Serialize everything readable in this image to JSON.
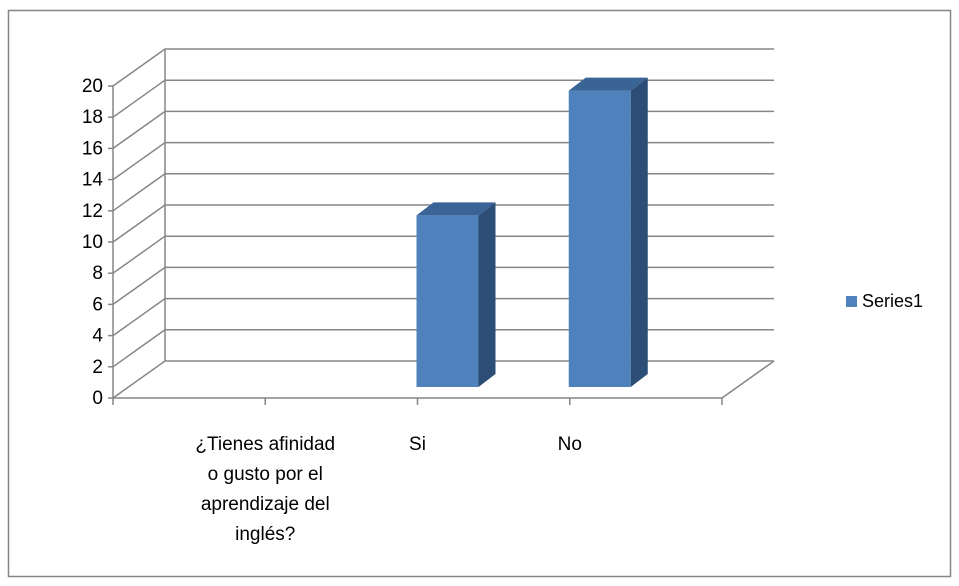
{
  "chart_data": {
    "type": "bar",
    "view": "3d-column",
    "categories": [
      "¿Tienes afinidad o gusto por el aprendizaje del inglés?",
      "Si",
      "No"
    ],
    "category_label_lines": [
      [
        "¿Tienes afinidad",
        "o gusto por el",
        "aprendizaje del",
        "inglés?"
      ],
      [
        "Si"
      ],
      [
        "No"
      ]
    ],
    "series": [
      {
        "name": "Series1",
        "values": [
          null,
          11,
          19
        ],
        "color": "#4F81BD"
      }
    ],
    "legend": {
      "label": "Series1",
      "position": "right"
    },
    "y_ticks": [
      "0",
      "2",
      "4",
      "6",
      "8",
      "10",
      "12",
      "14",
      "16",
      "18",
      "20"
    ],
    "ylim": [
      0,
      20
    ],
    "grid": true,
    "title": "",
    "xlabel": "",
    "ylabel": ""
  }
}
